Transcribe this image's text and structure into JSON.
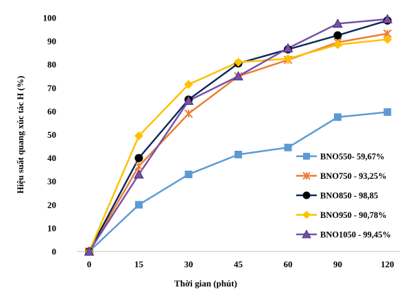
{
  "chart_data": {
    "type": "line",
    "categories": [
      "0",
      "15",
      "30",
      "45",
      "60",
      "90",
      "120"
    ],
    "ylabel": "Hiệu suất quang xúc tác H (%)",
    "xlabel": "Thời gian (phút)",
    "ylim": [
      0,
      100
    ],
    "yticks": [
      "0",
      "10",
      "20",
      "30",
      "40",
      "50",
      "60",
      "70",
      "80",
      "90",
      "100"
    ],
    "grid": false,
    "legend_position": "right",
    "series": [
      {
        "name": "BNO550- 59,67%",
        "color": "#5b9bd5",
        "marker": "square",
        "values": [
          0,
          20,
          33,
          41.5,
          44.5,
          57.5,
          59.67
        ]
      },
      {
        "name": "BNO750 - 93,25%",
        "color": "#ed7d31",
        "marker": "x",
        "values": [
          0,
          36.5,
          59,
          75,
          82,
          89.5,
          93.25
        ]
      },
      {
        "name": "BNO850 - 98,85",
        "color": "#0d2a5e",
        "marker": "circle",
        "values": [
          0,
          40,
          65,
          80.5,
          86.5,
          92.5,
          98.85
        ]
      },
      {
        "name": "BNO950 - 90,78%",
        "color": "#ffc000",
        "marker": "diamond",
        "values": [
          0,
          49.5,
          71.5,
          81,
          82.5,
          88.5,
          90.78
        ]
      },
      {
        "name": "BNO1050 - 99,45%",
        "color": "#7451a6",
        "marker": "triangle",
        "values": [
          0,
          33,
          64.5,
          75,
          87,
          97.5,
          99.45
        ]
      }
    ]
  }
}
